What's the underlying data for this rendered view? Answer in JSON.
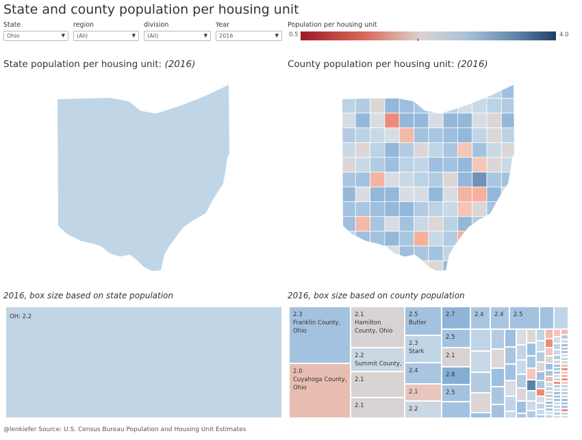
{
  "title": "State and county population per housing unit",
  "filters": [
    {
      "label": "State",
      "value": "Ohio"
    },
    {
      "label": "region",
      "value": "(All)"
    },
    {
      "label": "division",
      "value": "(All)"
    },
    {
      "label": "Year",
      "value": "2016"
    }
  ],
  "legend": {
    "label": "Population per housing unit",
    "min": "0.5",
    "max": "4.0"
  },
  "state_section": {
    "title": "State population per housing unit:",
    "year": "(2016)"
  },
  "county_section": {
    "title": "County population per housing unit:",
    "year": "(2016)"
  },
  "state_tree_title": "2016, box size based on state population",
  "county_tree_title": "2016,  box size based on county population",
  "state_tree": {
    "label": "OH: 2.2"
  },
  "county_tree": {
    "franklin": {
      "value": "2.3",
      "name": "Franklin County, Ohio"
    },
    "cuyahoga": {
      "value": "2.0",
      "name": "Cuyahoga County, Ohio"
    },
    "hamilton": {
      "value": "2.1",
      "name": "Hamilton County, Ohio"
    },
    "summit": {
      "value": "2.2",
      "name": "Summit County,"
    },
    "c_2_1_a": {
      "value": "2.1"
    },
    "c_2_1_b": {
      "value": "2.1"
    },
    "butler": {
      "value": "2.5",
      "name": "Butler"
    },
    "stark": {
      "value": "2.3",
      "name": "Stark"
    },
    "c_2_4": {
      "value": "2.4"
    },
    "c_2_1_c": {
      "value": "2.1"
    },
    "c_2_2": {
      "value": "2.2"
    },
    "c_2_7": {
      "value": "2.7"
    },
    "c_2_5_a": {
      "value": "2.5"
    },
    "c_2_1_d": {
      "value": "2.1"
    },
    "c_2_8": {
      "value": "2.8"
    },
    "c_2_5_b": {
      "value": "2.5"
    },
    "c_2_4_b": {
      "value": "2.4"
    },
    "c_2_4_c": {
      "value": "2.4"
    },
    "c_2_5_c": {
      "value": "2.5"
    }
  },
  "colors": {
    "low": "#9e1b28",
    "mid": "#dbd3d0",
    "high": "#213f66",
    "state_fill": "#c0d5e6"
  },
  "footer": "@lenkiefer Source: U.S. Census Bureau Population and Housing Unit Estimates"
}
